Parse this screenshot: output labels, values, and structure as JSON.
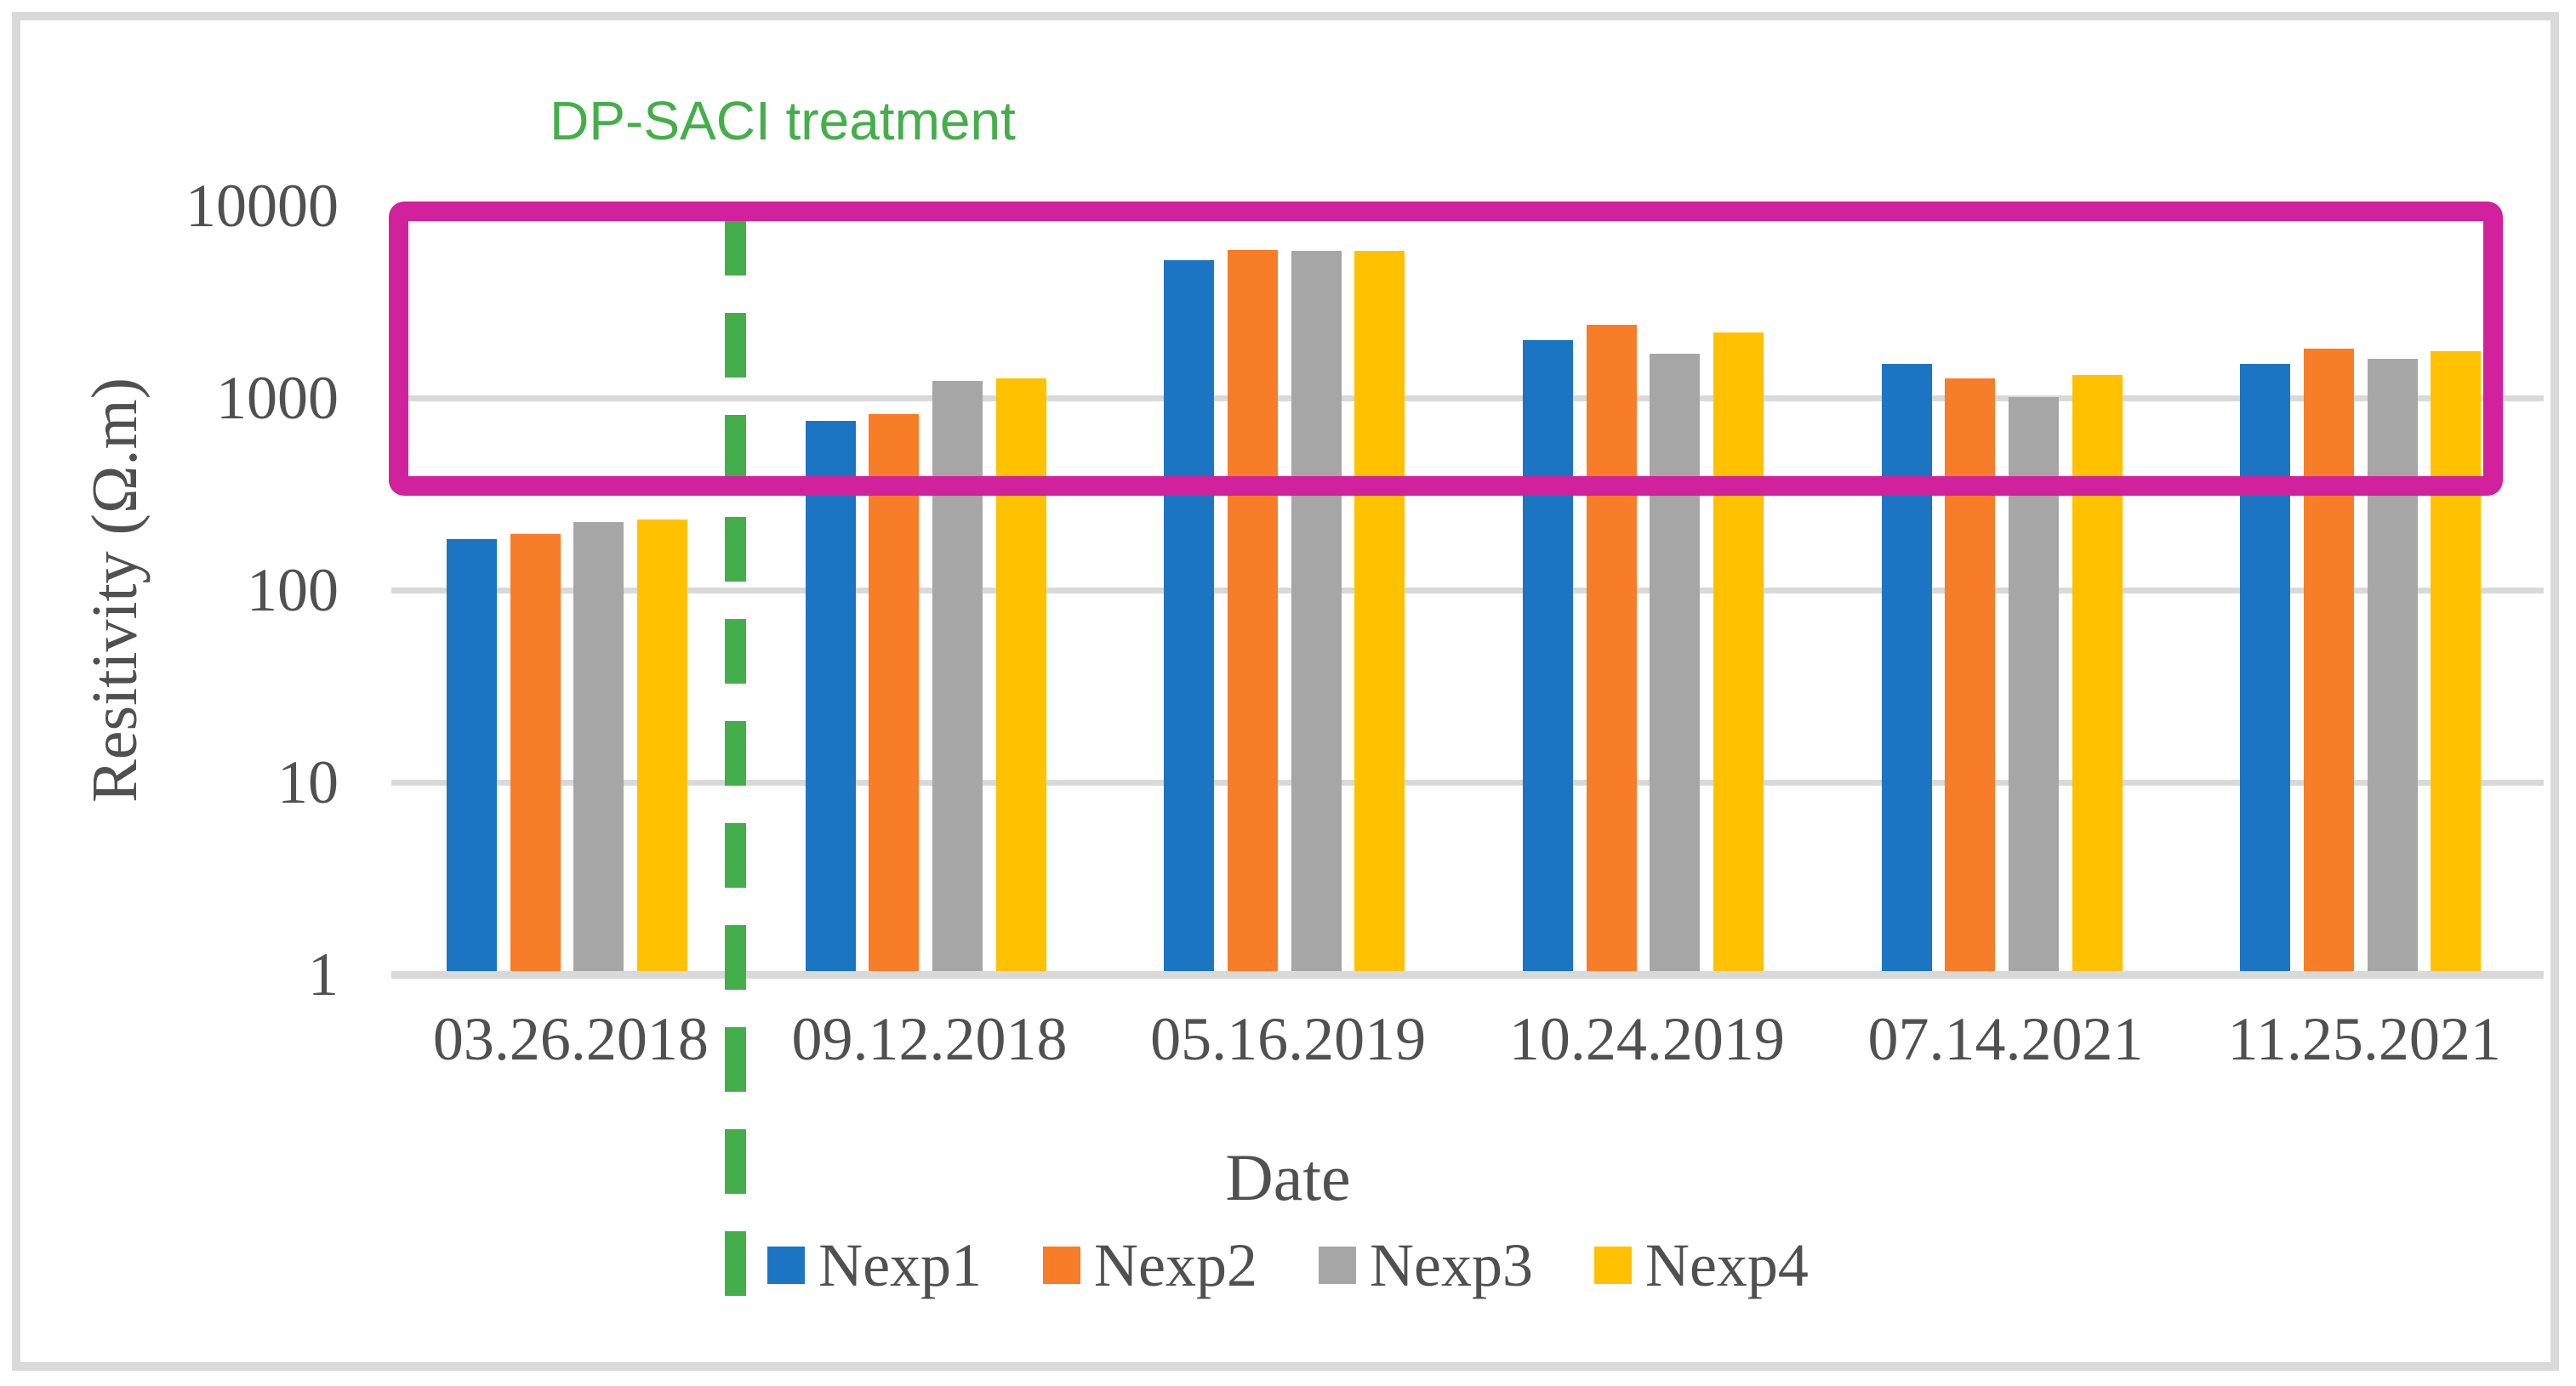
{
  "chart_data": {
    "type": "bar",
    "y_scale": "log",
    "ylim": [
      1,
      10000
    ],
    "yticks": [
      10000,
      1000,
      100,
      10,
      1
    ],
    "grid": true,
    "legend_position": "bottom",
    "xlabel": "Date",
    "ylabel": "Resitivity (Ω.m)",
    "categories": [
      "03.26.2018",
      "09.12.2018",
      "05.16.2019",
      "10.24.2019",
      "07.14.2021",
      "11.25.2021"
    ],
    "series": [
      {
        "name": "Nexp1",
        "color": "#1B75C3",
        "values": [
          185,
          760,
          5200,
          2000,
          1500,
          1500
        ]
      },
      {
        "name": "Nexp2",
        "color": "#F77D28",
        "values": [
          195,
          825,
          5900,
          2400,
          1270,
          1800
        ]
      },
      {
        "name": "Nexp3",
        "color": "#A6A6A6",
        "values": [
          225,
          1230,
          5850,
          1700,
          1010,
          1600
        ]
      },
      {
        "name": "Nexp4",
        "color": "#FFC100",
        "values": [
          233,
          1270,
          5850,
          2200,
          1320,
          1750
        ]
      }
    ]
  },
  "annotations": {
    "treatment_label": "DP-SACI treatment",
    "treatment_color": "#44AF4A",
    "highlight_box_color": "#D1219C"
  },
  "colors": {
    "grid": "#D9D9D9",
    "axis_text": "#505050",
    "background": "#FFFFFF"
  }
}
